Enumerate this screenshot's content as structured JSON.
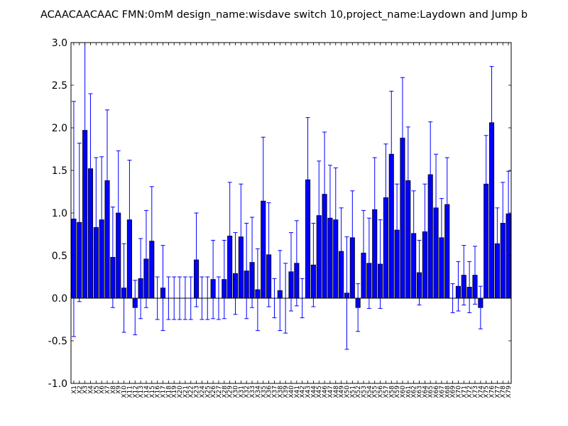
{
  "chart_data": {
    "type": "bar",
    "title": "ACAACAACAAC  FMN:0mM  design_name:wisdave switch 10,project_name:Laydown and Jump b",
    "xlabel": "",
    "ylabel": "",
    "ylim": [
      -1.0,
      3.0
    ],
    "yticks": [
      "-1.0",
      "-0.5",
      "0.0",
      "0.5",
      "1.0",
      "1.5",
      "2.0",
      "2.5",
      "3.0"
    ],
    "grid": false,
    "bar_color": "#0000ff",
    "error_color": "#0000ff",
    "categories": [
      "X1",
      "X2",
      "X3",
      "X4",
      "X5",
      "X6",
      "X7",
      "X8",
      "X9",
      "X10",
      "X11",
      "X12",
      "X13",
      "X14",
      "X15",
      "X16",
      "X17",
      "X18",
      "X19",
      "X20",
      "X21",
      "X22",
      "X23",
      "X24",
      "X25",
      "X26",
      "X27",
      "X28",
      "X29",
      "X30",
      "X31",
      "X32",
      "X33",
      "X34",
      "X35",
      "X36",
      "X37",
      "X38",
      "X39",
      "X40",
      "X41",
      "X42",
      "X43",
      "X44",
      "X45",
      "X46",
      "X47",
      "X48",
      "X49",
      "X50",
      "X51",
      "X52",
      "X53",
      "X54",
      "X55",
      "X56",
      "X57",
      "X58",
      "X59",
      "X60",
      "X61",
      "X62",
      "X63",
      "X64",
      "X65",
      "X66",
      "X67",
      "X68",
      "X69",
      "X70",
      "X71",
      "X72",
      "X73",
      "X74",
      "X75",
      "X76",
      "X77",
      "X78",
      "X79"
    ],
    "values": [
      0.93,
      0.89,
      1.97,
      1.52,
      0.83,
      0.92,
      1.38,
      0.48,
      1.0,
      0.12,
      0.92,
      -0.11,
      0.23,
      0.46,
      0.67,
      0.0,
      0.12,
      0.0,
      0.0,
      0.0,
      0.0,
      0.0,
      0.45,
      0.0,
      0.0,
      0.22,
      0.0,
      0.22,
      0.73,
      0.29,
      0.72,
      0.32,
      0.42,
      0.1,
      1.14,
      0.51,
      0.0,
      0.09,
      0.0,
      0.31,
      0.41,
      0.0,
      1.39,
      0.39,
      0.97,
      1.22,
      0.94,
      0.92,
      0.55,
      0.06,
      0.71,
      -0.11,
      0.53,
      0.41,
      1.04,
      0.4,
      1.18,
      1.69,
      0.8,
      1.88,
      1.38,
      0.76,
      0.3,
      0.78,
      1.45,
      1.06,
      0.71,
      1.1,
      0.0,
      0.14,
      0.27,
      0.13,
      0.27,
      -0.11,
      1.34,
      2.06,
      0.64,
      0.88,
      0.99
    ],
    "errors": [
      1.38,
      0.93,
      1.03,
      0.88,
      0.82,
      0.74,
      0.83,
      0.59,
      0.73,
      0.52,
      0.7,
      0.32,
      0.47,
      0.57,
      0.64,
      0.25,
      0.5,
      0.25,
      0.25,
      0.25,
      0.25,
      0.25,
      0.55,
      0.25,
      0.25,
      0.46,
      0.25,
      0.46,
      0.63,
      0.48,
      0.62,
      0.56,
      0.53,
      0.48,
      0.75,
      0.61,
      0.23,
      0.47,
      0.41,
      0.46,
      0.5,
      0.23,
      0.73,
      0.49,
      0.64,
      0.73,
      0.62,
      0.61,
      0.51,
      0.66,
      0.55,
      0.28,
      0.5,
      0.53,
      0.61,
      0.52,
      0.63,
      0.74,
      0.54,
      0.71,
      0.63,
      0.5,
      0.38,
      0.56,
      0.62,
      0.63,
      0.46,
      0.55,
      0.17,
      0.29,
      0.35,
      0.3,
      0.34,
      0.25,
      0.57,
      0.66,
      0.42,
      0.48,
      0.5
    ]
  }
}
